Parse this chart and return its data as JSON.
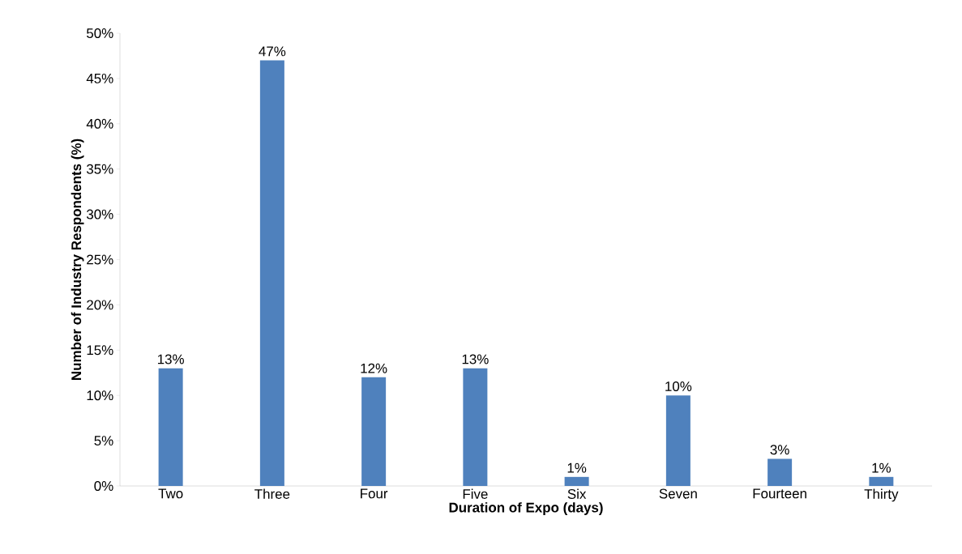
{
  "chart_data": {
    "type": "bar",
    "xlabel": "Duration of Expo (days)",
    "ylabel": "Number  of Industry Respondents (%)",
    "categories": [
      "Two",
      "Three",
      "Four",
      "Five",
      "Six",
      "Seven",
      "Fourteen",
      "Thirty"
    ],
    "values": [
      13,
      47,
      12,
      13,
      1,
      10,
      3,
      1
    ],
    "value_labels": [
      "13%",
      "47%",
      "12%",
      "13%",
      "1%",
      "10%",
      "3%",
      "1%"
    ],
    "color": "#4f81bd",
    "ylim": [
      0,
      50
    ],
    "yticks": [
      {
        "value": 0,
        "label": "0%"
      },
      {
        "value": 5,
        "label": "5%"
      },
      {
        "value": 10,
        "label": "10%"
      },
      {
        "value": 15,
        "label": "15%"
      },
      {
        "value": 20,
        "label": "20%"
      },
      {
        "value": 25,
        "label": "25%"
      },
      {
        "value": 30,
        "label": "30%"
      },
      {
        "value": 35,
        "label": "35%"
      },
      {
        "value": 40,
        "label": "40%"
      },
      {
        "value": 45,
        "label": "45%"
      },
      {
        "value": 50,
        "label": "50%"
      }
    ],
    "grid": false
  }
}
